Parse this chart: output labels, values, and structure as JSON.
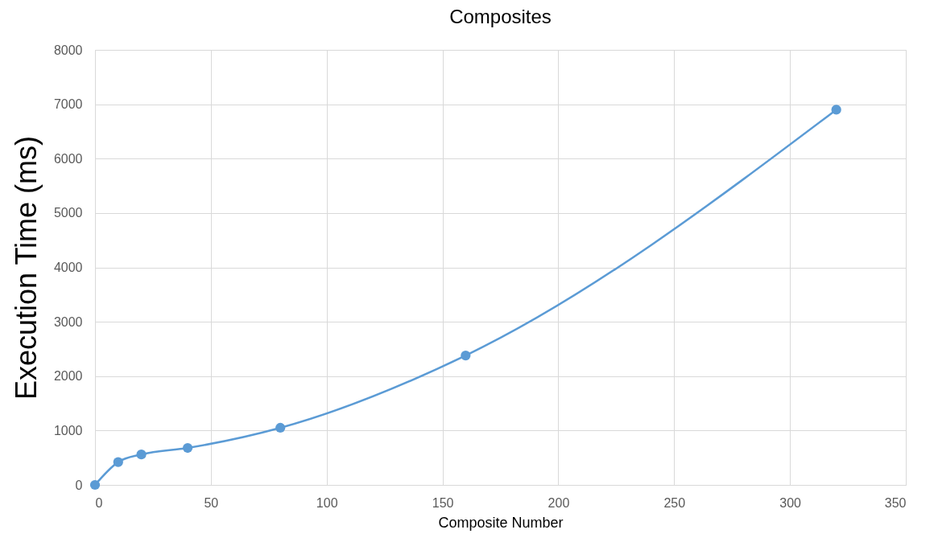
{
  "chart_data": {
    "type": "line",
    "title": "Composites",
    "xlabel": "Composite Number",
    "ylabel": "Execution Time (ms)",
    "x": [
      0,
      10,
      20,
      40,
      80,
      160,
      320
    ],
    "series": [
      {
        "color": "#5b9bd5",
        "values": [
          0,
          420,
          560,
          680,
          1050,
          2380,
          6900
        ]
      }
    ],
    "xlim": [
      0,
      350
    ],
    "xticks": [
      0,
      50,
      100,
      150,
      200,
      250,
      300,
      350
    ],
    "ylim": [
      0,
      8000
    ],
    "yticks": [
      0,
      1000,
      2000,
      3000,
      4000,
      5000,
      6000,
      7000,
      8000
    ],
    "grid": true,
    "marker": "circle",
    "line_style": "solid"
  }
}
